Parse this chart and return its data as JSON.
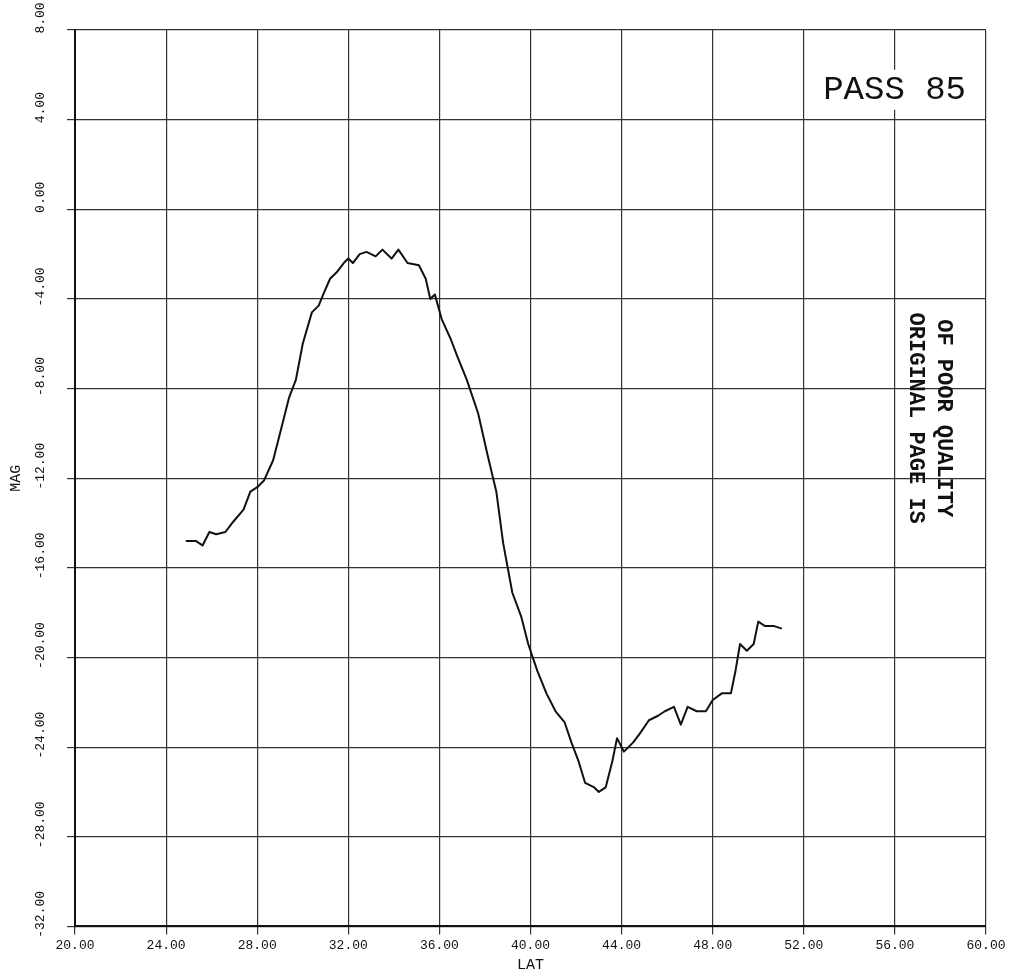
{
  "chart_data": {
    "type": "line",
    "title": "PASS 85",
    "xlabel": "LAT",
    "ylabel": "MAG",
    "annotations": [
      "ORIGINAL PAGE IS OF POOR QUALITY"
    ],
    "xlim": [
      20,
      60
    ],
    "xticks": [
      {
        "value": 20,
        "label": "20.00"
      },
      {
        "value": 24,
        "label": "24.00"
      },
      {
        "value": 28,
        "label": "28.00"
      },
      {
        "value": 32,
        "label": "32.00"
      },
      {
        "value": 36,
        "label": "36.00"
      },
      {
        "value": 40,
        "label": "40.00"
      },
      {
        "value": 44,
        "label": "44.00"
      },
      {
        "value": 48,
        "label": "48.00"
      },
      {
        "value": 52,
        "label": "52.00"
      },
      {
        "value": 56,
        "label": "56.00"
      },
      {
        "value": 60,
        "label": "60.00"
      }
    ],
    "ylim": [
      -32,
      8
    ],
    "yticks": [
      {
        "value": -32,
        "label": "-32.00"
      },
      {
        "value": -28,
        "label": "-28.00"
      },
      {
        "value": -24,
        "label": "-24.00"
      },
      {
        "value": -20,
        "label": "-20.00"
      },
      {
        "value": -16,
        "label": "-16.00"
      },
      {
        "value": -12,
        "label": "-12.00"
      },
      {
        "value": -8,
        "label": "-8.00"
      },
      {
        "value": -4,
        "label": "-4.00"
      },
      {
        "value": 0,
        "label": "0.00"
      },
      {
        "value": 4,
        "label": "4.00"
      },
      {
        "value": 8,
        "label": "8.00"
      }
    ],
    "grid": true,
    "line_style": "solid",
    "marker": "none",
    "series": [
      {
        "color": "#111111",
        "x": [
          24.9,
          25.3,
          25.6,
          25.9,
          26.2,
          26.6,
          26.9,
          27.4,
          27.7,
          28.0,
          28.3,
          28.7,
          29.0,
          29.4,
          29.7,
          30.0,
          30.4,
          30.7,
          30.9,
          31.2,
          31.5,
          31.8,
          32.0,
          32.2,
          32.5,
          32.8,
          33.2,
          33.5,
          33.9,
          34.2,
          34.6,
          35.1,
          35.4,
          35.6,
          35.8,
          36.1,
          36.5,
          36.8,
          37.2,
          37.7,
          38.1,
          38.5,
          38.8,
          39.2,
          39.6,
          39.9,
          40.3,
          40.7,
          41.1,
          41.5,
          41.8,
          42.1,
          42.4,
          42.8,
          43.0,
          43.3,
          43.6,
          43.8,
          44.1,
          44.5,
          44.8,
          45.2,
          45.6,
          45.9,
          46.3,
          46.6,
          46.9,
          47.3,
          47.7,
          48.0,
          48.4,
          48.8,
          49.0,
          49.2,
          49.5,
          49.8,
          50.0,
          50.3,
          50.7,
          51.0
        ],
        "values": [
          -14.8,
          -14.8,
          -15.0,
          -14.4,
          -14.5,
          -14.4,
          -14.0,
          -13.4,
          -12.6,
          -12.4,
          -12.1,
          -11.2,
          -10.0,
          -8.4,
          -7.6,
          -6.0,
          -4.6,
          -4.3,
          -3.8,
          -3.1,
          -2.8,
          -2.4,
          -2.2,
          -2.4,
          -2.0,
          -1.9,
          -2.1,
          -1.8,
          -2.2,
          -1.8,
          -2.4,
          -2.5,
          -3.1,
          -4.0,
          -3.8,
          -4.9,
          -5.8,
          -6.6,
          -7.6,
          -9.1,
          -10.9,
          -12.6,
          -14.9,
          -17.1,
          -18.2,
          -19.4,
          -20.6,
          -21.6,
          -22.4,
          -22.9,
          -23.8,
          -24.6,
          -25.6,
          -25.8,
          -26.0,
          -25.8,
          -24.6,
          -23.6,
          -24.2,
          -23.8,
          -23.4,
          -22.8,
          -22.6,
          -22.4,
          -22.2,
          -23.0,
          -22.2,
          -22.4,
          -22.4,
          -21.9,
          -21.6,
          -21.6,
          -20.6,
          -19.4,
          -19.7,
          -19.4,
          -18.4,
          -18.6,
          -18.6,
          -18.7
        ]
      }
    ]
  }
}
